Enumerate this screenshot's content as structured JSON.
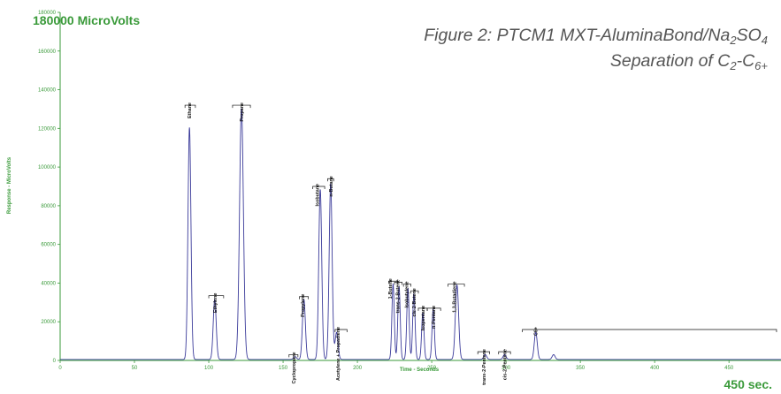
{
  "chart_data": {
    "type": "line",
    "title_line1": "Figure 2: PTCM1 MXT-AluminaBond/Na",
    "title_line1_sub": "2",
    "title_line1_rest": "SO",
    "title_line1_sub2": "4",
    "title_line2": "Separation of C",
    "title_line2_sub": "2",
    "title_line2_mid": "-C",
    "title_line2_sub2": "6+",
    "y_max_label": "180000 MicroVolts",
    "x_max_label": "450 sec.",
    "xlabel": "Time - Seconds",
    "ylabel": "Response - MicroVolts",
    "xlim": [
      0,
      485
    ],
    "ylim": [
      0,
      180000
    ],
    "x_ticks": [
      0,
      50,
      100,
      150,
      200,
      250,
      300,
      350,
      400,
      450
    ],
    "y_ticks": [
      0,
      20000,
      40000,
      60000,
      80000,
      100000,
      120000,
      140000,
      160000,
      180000
    ],
    "colors": {
      "trace": "#3b3b9a",
      "axis": "#3a9a3a",
      "title": "#555555"
    },
    "baseline": 500,
    "peaks": [
      {
        "name": "Ethane",
        "x": 87,
        "height": 120000,
        "width": 1.0
      },
      {
        "name": "Ethylene",
        "x": 104,
        "height": 31000,
        "width": 1.0
      },
      {
        "name": "Propane",
        "x": 122,
        "height": 130000,
        "width": 1.3
      },
      {
        "name": "Cyclopropane",
        "x": 158,
        "height": 1500,
        "width": 1.0
      },
      {
        "name": "Propylene",
        "x": 164,
        "height": 31000,
        "width": 1.0
      },
      {
        "name": "Isobutane",
        "x": 175,
        "height": 88000,
        "width": 1.0
      },
      {
        "name": "n-Butane",
        "x": 182,
        "height": 91000,
        "width": 1.0
      },
      {
        "name": "Acetylene + Propadiene",
        "x": 186,
        "height": 14000,
        "width": 1.0
      },
      {
        "name": "1-Butene",
        "x": 224,
        "height": 39000,
        "width": 0.8
      },
      {
        "name": "trans-2-Butene",
        "x": 228,
        "height": 38000,
        "width": 0.8
      },
      {
        "name": "Isobutylene",
        "x": 234,
        "height": 37000,
        "width": 0.8
      },
      {
        "name": "cis-2-Butene",
        "x": 238,
        "height": 34000,
        "width": 0.8
      },
      {
        "name": "Isopentane",
        "x": 244,
        "height": 24000,
        "width": 0.8
      },
      {
        "name": "n-Pentane",
        "x": 251,
        "height": 26000,
        "width": 0.8
      },
      {
        "name": "1,3-Butadiene",
        "x": 267,
        "height": 38500,
        "width": 1.1
      },
      {
        "name": "trans-2-Pentene",
        "x": 286,
        "height": 2500,
        "width": 1.0
      },
      {
        "name": "cis-2-Pentene",
        "x": 299,
        "height": 2500,
        "width": 1.0
      },
      {
        "name": "C6+",
        "x": 320,
        "height": 14000,
        "width": 1.0
      },
      {
        "name": "",
        "x": 332,
        "height": 2500,
        "width": 1.0
      }
    ],
    "labels": [
      {
        "text": "Ethane",
        "x": 87,
        "y": 132000,
        "bracket": [
          84,
          91
        ]
      },
      {
        "text": "Ethylene",
        "x": 104,
        "y": 33500,
        "bracket": [
          100,
          110
        ]
      },
      {
        "text": "Propane",
        "x": 122,
        "y": 132000,
        "bracket": [
          116,
          128
        ]
      },
      {
        "text": "Cyclopropane",
        "x": 157,
        "y": 3000,
        "bracket": [
          154,
          160
        ]
      },
      {
        "text": "Propylene",
        "x": 163,
        "y": 33000,
        "bracket": [
          161,
          167
        ]
      },
      {
        "text": "Isobutane",
        "x": 173,
        "y": 90000,
        "bracket": [
          170,
          178
        ]
      },
      {
        "text": "n-Butane",
        "x": 182,
        "y": 94000,
        "bracket": [
          180,
          184
        ]
      },
      {
        "text": "Acetylene + Propadiene",
        "x": 187,
        "y": 16000,
        "bracket": [
          185,
          193
        ]
      },
      {
        "text": "1-Butene",
        "x": 222,
        "y": 41000,
        "bracket": [
          221,
          227
        ]
      },
      {
        "text": "trans-2-Butene",
        "x": 227,
        "y": 40500,
        "bracket": [
          225,
          230
        ]
      },
      {
        "text": "Isobutylene",
        "x": 233,
        "y": 39500,
        "bracket": [
          231,
          236
        ]
      },
      {
        "text": "cis-2-Butene",
        "x": 238,
        "y": 36000,
        "bracket": [
          236,
          241
        ]
      },
      {
        "text": "Isopentane",
        "x": 244,
        "y": 27000,
        "bracket": [
          241,
          247
        ]
      },
      {
        "text": "n-Pentane",
        "x": 251,
        "y": 27000,
        "bracket": [
          247,
          256
        ]
      },
      {
        "text": "1,3-Butadiene",
        "x": 265,
        "y": 39500,
        "bracket": [
          261,
          272
        ]
      },
      {
        "text": "trans-2-Pentene",
        "x": 285,
        "y": 4500,
        "bracket": [
          281,
          289
        ]
      },
      {
        "text": "cis-2-Pentene",
        "x": 299,
        "y": 4500,
        "bracket": [
          295,
          303
        ]
      },
      {
        "text": "C6+",
        "x": 320,
        "y": 16000,
        "bracket": [
          311,
          482
        ]
      }
    ]
  }
}
